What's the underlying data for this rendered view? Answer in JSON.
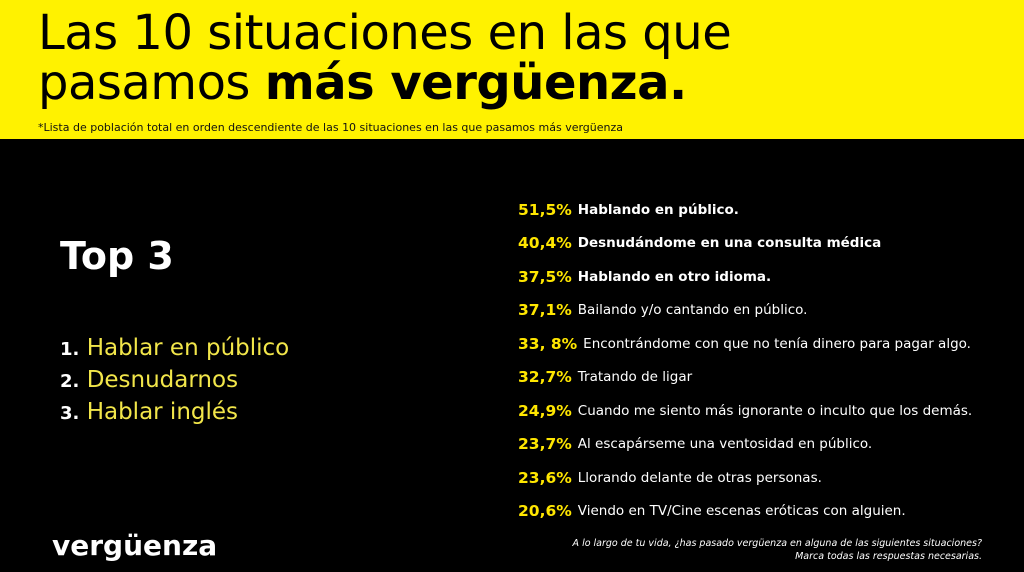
{
  "header": {
    "title_line1": "Las 10 situaciones en las que",
    "title_line2_regular": "pasamos ",
    "title_line2_bold": "más vergüenza.",
    "footnote": "*Lista de población total en orden descendiente de las 10 situaciones en las que pasamos más vergüenza",
    "background_color": "#fff200"
  },
  "top3": {
    "heading": "Top 3",
    "items": [
      {
        "number": "1.",
        "text": "Hablar en público"
      },
      {
        "number": "2.",
        "text": "Desnudarnos"
      },
      {
        "number": "3.",
        "text": "Hablar inglés"
      }
    ]
  },
  "ranking": [
    {
      "percent": "51,5%",
      "label": "Hablando en público.",
      "bold": true
    },
    {
      "percent": "40,4%",
      "label": "Desnudándome en una consulta médica",
      "bold": true
    },
    {
      "percent": "37,5%",
      "label": "Hablando en otro idioma.",
      "bold": true
    },
    {
      "percent": "37,1%",
      "label": "Bailando y/o cantando en público.",
      "bold": false
    },
    {
      "percent": "33, 8%",
      "label": "Encontrándome con que no tenía dinero para pagar algo.",
      "bold": false
    },
    {
      "percent": "32,7%",
      "label": "Tratando de ligar",
      "bold": false
    },
    {
      "percent": "24,9%",
      "label": "Cuando me siento más ignorante o inculto que los demás.",
      "bold": false
    },
    {
      "percent": "23,7%",
      "label": "Al escapárseme una ventosidad en público.",
      "bold": false
    },
    {
      "percent": "23,6%",
      "label": "Llorando delante de otras personas.",
      "bold": false
    },
    {
      "percent": "20,6%",
      "label": "Viendo en TV/Cine escenas eróticas con alguien.",
      "bold": false
    }
  ],
  "footer": {
    "logo": "vergüenza",
    "question_line1": "A lo largo de tu vida, ¿has pasado vergüenza en alguna de las siguientes situaciones?",
    "question_line2": "Marca todas las respuestas necesarias."
  },
  "colors": {
    "accent": "#ffe600",
    "background": "#000000",
    "text": "#ffffff"
  }
}
